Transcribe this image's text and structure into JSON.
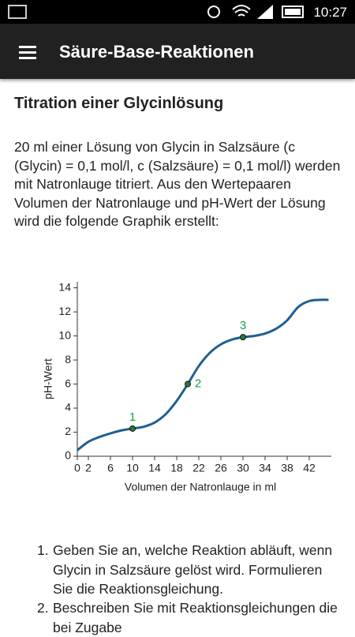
{
  "status_bar": {
    "time": "10:27"
  },
  "app_bar": {
    "title": "Säure-Base-Reaktionen"
  },
  "content": {
    "heading": "Titration einer Glycinlösung",
    "paragraph": "20 ml einer Lösung von Glycin in Salzsäure (c (Glycin) = 0,1 mol/l, c (Salzsäure) = 0,1 mol/l) werden mit Natronlauge titriert. Aus den Wertepaaren Volumen der Natronlauge und pH-Wert der Lösung wird die folgende Graphik erstellt:",
    "list": [
      {
        "number": "1.",
        "text": "Geben Sie an, welche Reaktion abläuft, wenn Glycin in Salzsäure gelöst wird. Formulieren Sie die Reaktionsgleichung."
      },
      {
        "number": "2.",
        "text": "Beschreiben Sie mit Reaktionsgleichungen die bei Zugabe"
      }
    ]
  },
  "chart_data": {
    "type": "line",
    "x_label": "Volumen der Natronlauge in ml",
    "y_label": "pH-Wert",
    "x": [
      0,
      2,
      4,
      6,
      8,
      10,
      12,
      14,
      16,
      18,
      20,
      22,
      24,
      26,
      28,
      30,
      32,
      34,
      36,
      38,
      40,
      42,
      44,
      45.5
    ],
    "series": [
      {
        "name": "pH",
        "color": "#1f5f92",
        "values": [
          0.5,
          1.2,
          1.6,
          1.9,
          2.15,
          2.3,
          2.45,
          2.8,
          3.5,
          4.6,
          6.0,
          7.5,
          8.6,
          9.3,
          9.7,
          9.9,
          10.0,
          10.2,
          10.6,
          11.3,
          12.4,
          12.9,
          13.0,
          13.0
        ]
      }
    ],
    "points": {
      "x": [
        10,
        20,
        30
      ],
      "values": [
        2.3,
        6.0,
        9.9
      ],
      "labels": [
        "1",
        "2",
        "3"
      ],
      "color": "#2a7a3a",
      "label_color": "#19a04b"
    },
    "xlim": [
      0,
      46
    ],
    "ylim": [
      0,
      14.5
    ],
    "xticks": [
      0,
      2,
      6,
      10,
      14,
      18,
      22,
      26,
      30,
      34,
      38,
      42
    ],
    "yticks": [
      0,
      2,
      4,
      6,
      8,
      10,
      12,
      14
    ]
  }
}
